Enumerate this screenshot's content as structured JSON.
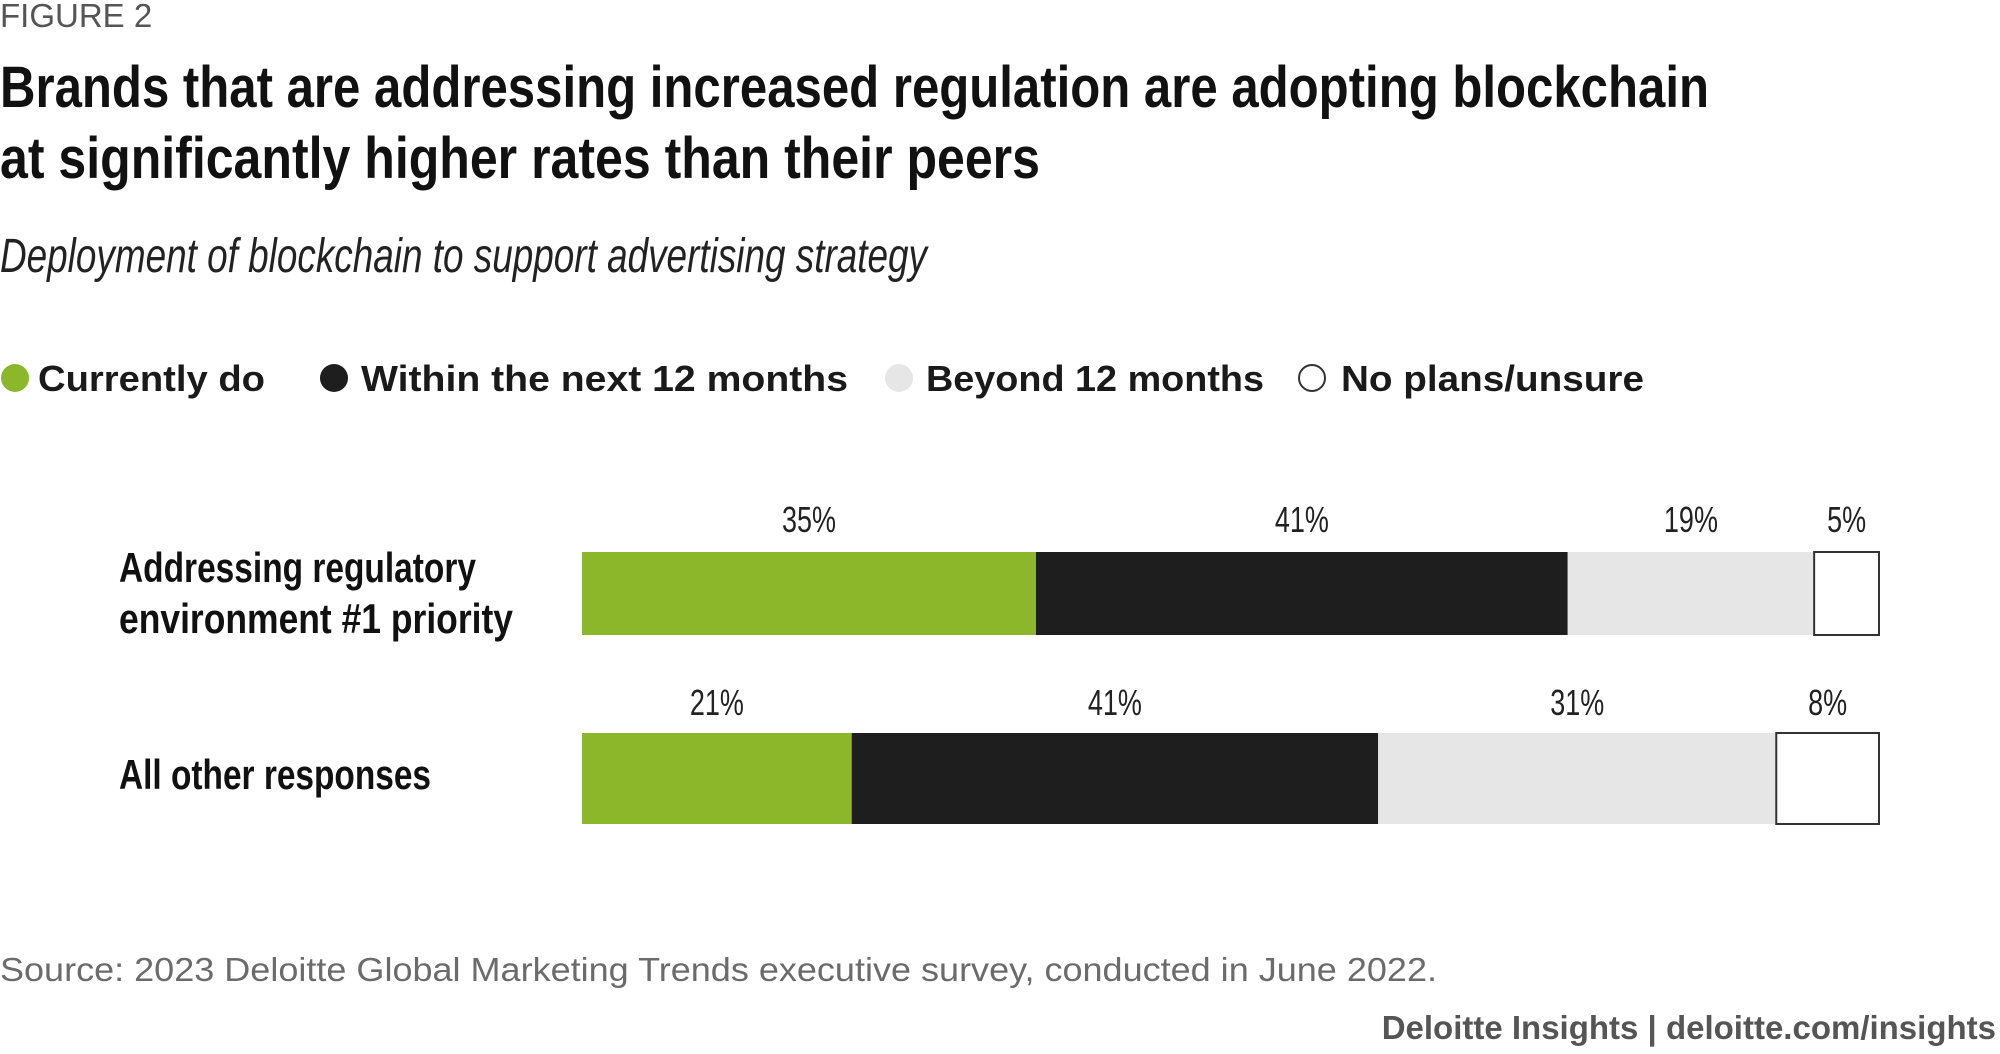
{
  "figure_label": "FIGURE 2",
  "chart_data": {
    "type": "bar",
    "orientation": "horizontal-stacked",
    "title_lines": [
      "Brands that are addressing increased regulation are adopting blockchain",
      "at significantly higher rates than their peers"
    ],
    "subtitle": "Deployment of blockchain to support advertising strategy",
    "legend_placement": "top-left",
    "series": [
      {
        "name": "Currently do",
        "color": "#8cb72a",
        "values": [
          35,
          21
        ]
      },
      {
        "name": "Within the next 12 months",
        "color": "#1e1e1e",
        "values": [
          41,
          41
        ]
      },
      {
        "name": "Beyond 12 months",
        "color": "#e6e6e6",
        "values": [
          19,
          31
        ]
      },
      {
        "name": "No plans/unsure",
        "color": "#ffffff",
        "values": [
          5,
          8
        ]
      }
    ],
    "categories": [
      {
        "lines": [
          "Addressing regulatory",
          "environment #1 priority"
        ]
      },
      {
        "lines": [
          "All other responses"
        ]
      }
    ],
    "value_labels": [
      [
        "35%",
        "41%",
        "19%",
        "5%"
      ],
      [
        "21%",
        "41%",
        "31%",
        "8%"
      ]
    ],
    "unit": "%"
  },
  "source": "Source: 2023 Deloitte Global Marketing Trends executive survey, conducted in June 2022.",
  "footer": "Deloitte Insights | deloitte.com/insights"
}
